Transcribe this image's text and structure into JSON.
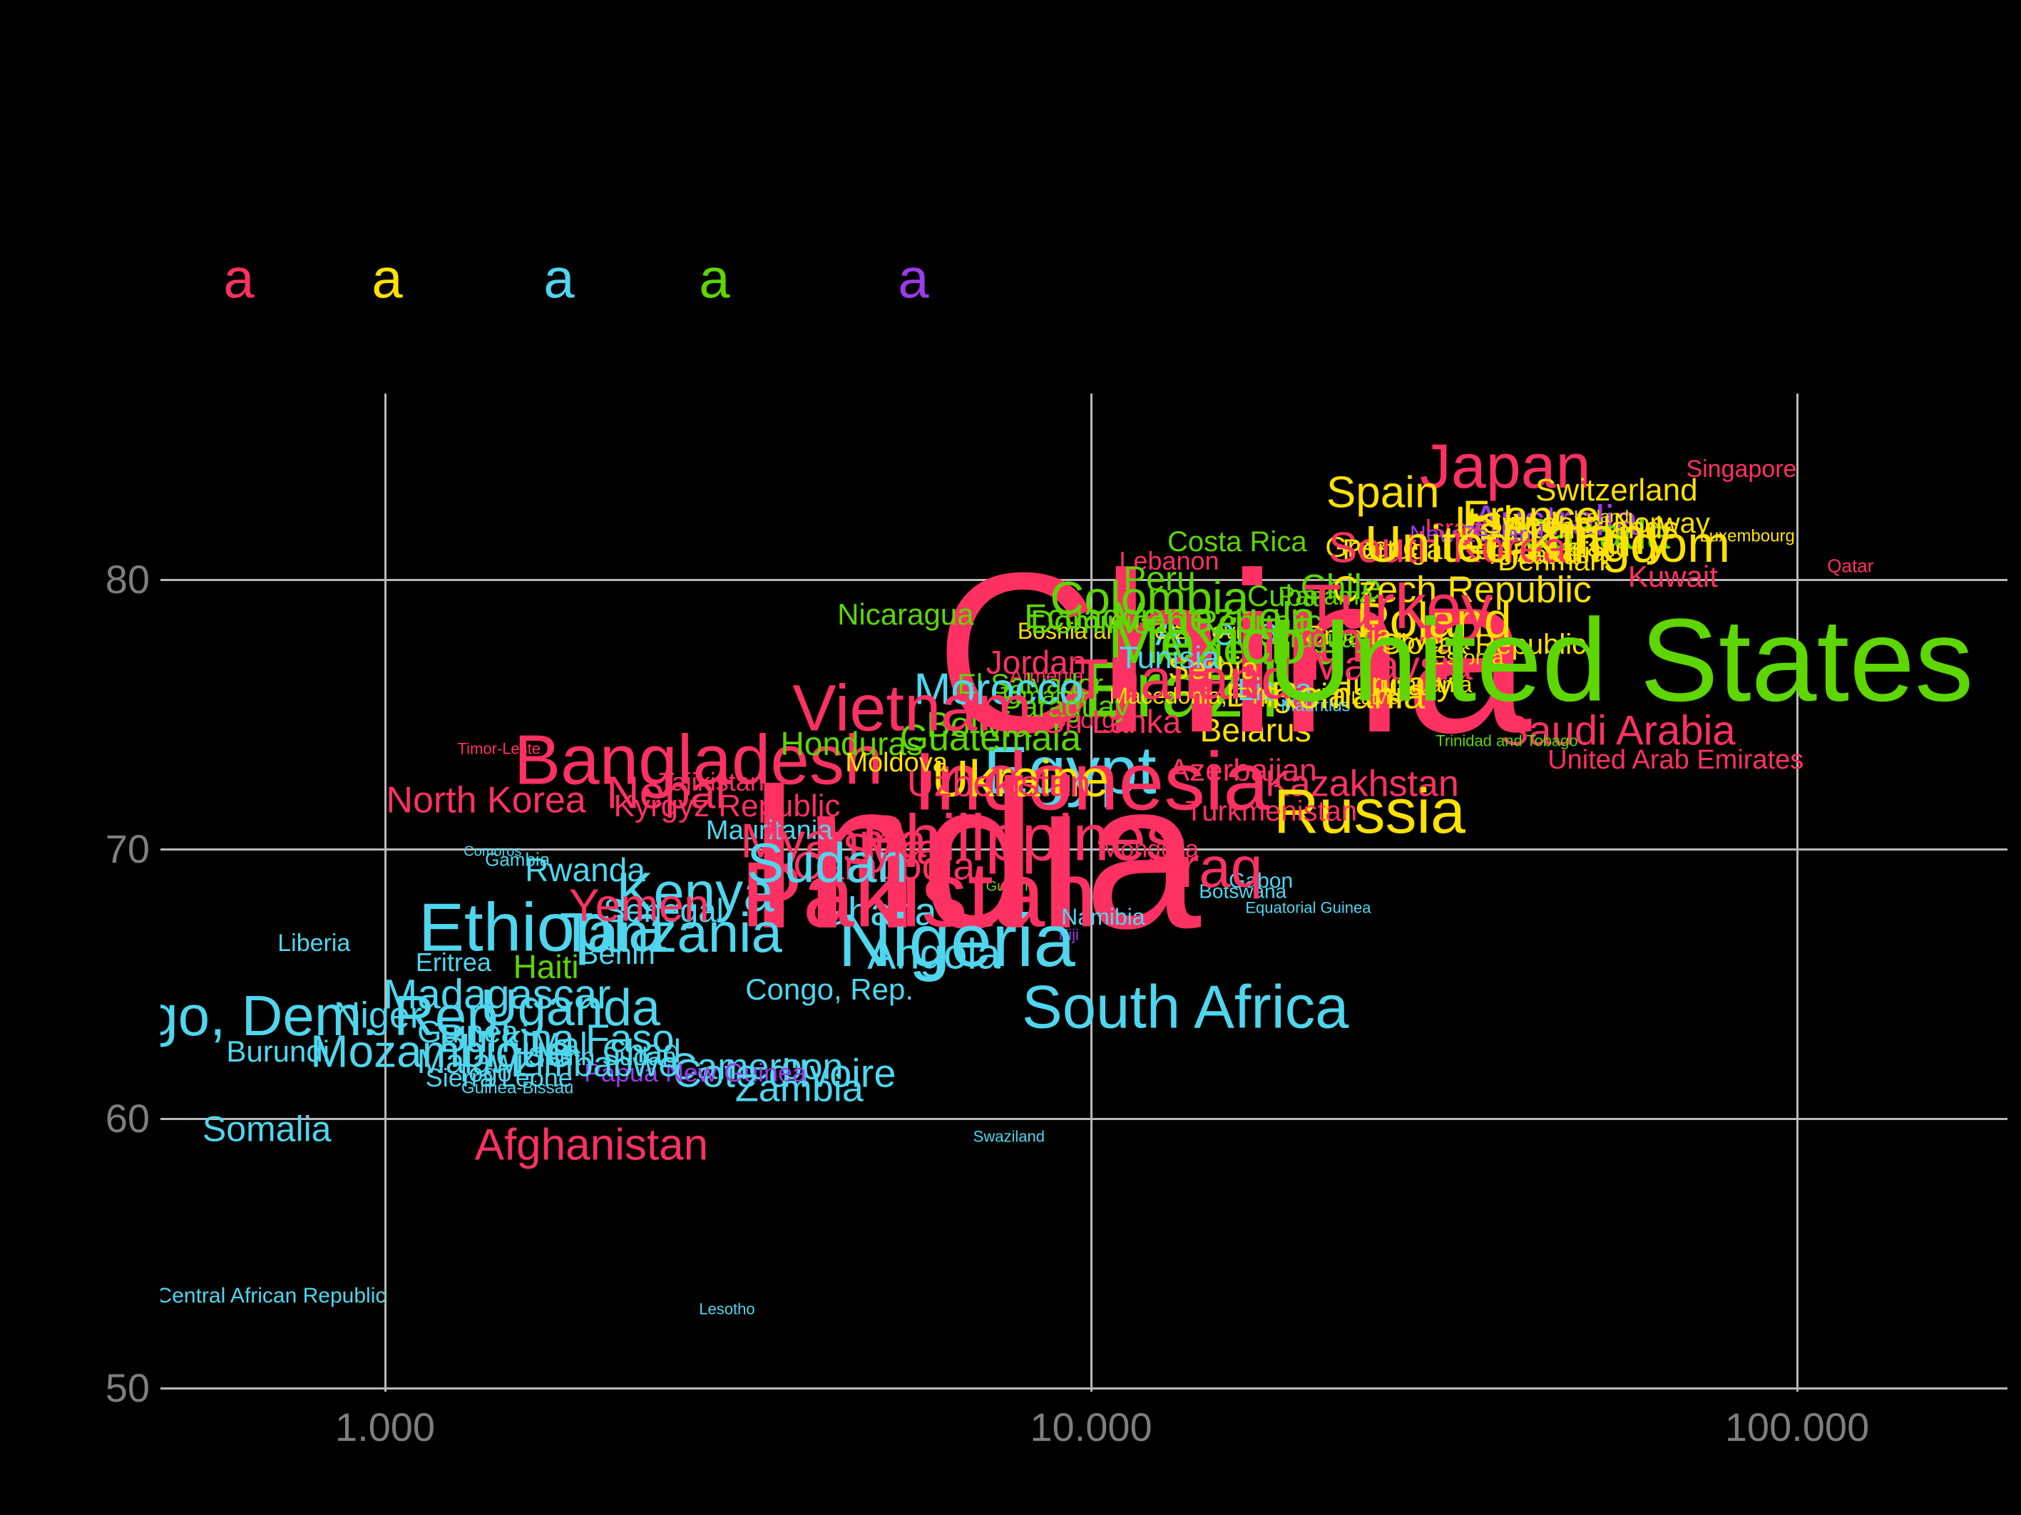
{
  "figure": {
    "background_color": "#000000",
    "gridline_color": "#b9b9b9",
    "axis_text_color": "#7e7e7e"
  },
  "legend": {
    "swatches": [
      {
        "glyph": "a",
        "color": "#ff3162"
      },
      {
        "glyph": "a",
        "color": "#ffe100"
      },
      {
        "glyph": "a",
        "color": "#4fd6ee"
      },
      {
        "glyph": "a",
        "color": "#5ed600"
      },
      {
        "glyph": "a",
        "color": "#9a3ce9"
      }
    ]
  },
  "continent_colors": {
    "asia": "#ff3162",
    "europe": "#ffe100",
    "africa": "#4fd6ee",
    "americas": "#5ed600",
    "oceania": "#9a3ce9"
  },
  "chart_data": {
    "type": "scatter",
    "mark": "text-label",
    "x_axis": {
      "scale": "log10",
      "ticks": [
        {
          "label": "1.000",
          "value": 1000
        },
        {
          "label": "10.000",
          "value": 10000
        },
        {
          "label": "100.000",
          "value": 100000
        }
      ]
    },
    "y_axis": {
      "scale": "linear",
      "ticks": [
        {
          "label": "80",
          "value": 80
        },
        {
          "label": "70",
          "value": 70
        },
        {
          "label": "60",
          "value": 60
        },
        {
          "label": "50",
          "value": 50
        }
      ]
    },
    "xlim": [
      700,
      200000
    ],
    "ylim": [
      46,
      87
    ],
    "grid": true,
    "points_columns": [
      "country",
      "gdp_per_capita",
      "life_expectancy",
      "label_size_px",
      "continent"
    ],
    "points": [
      [
        "China",
        15900,
        77.3,
        320,
        "asia"
      ],
      [
        "India",
        6800,
        69.8,
        295,
        "asia"
      ],
      [
        "Pakistan",
        5700,
        68.3,
        130,
        "asia"
      ],
      [
        "Indonesia",
        10000,
        72.5,
        115,
        "asia"
      ],
      [
        "Bangladesh",
        2780,
        73.3,
        98,
        "asia"
      ],
      [
        "Japan",
        38600,
        84.2,
        88,
        "asia"
      ],
      [
        "Philippines",
        7930,
        70.4,
        92,
        "asia"
      ],
      [
        "Vietnam",
        5580,
        75.2,
        92,
        "asia"
      ],
      [
        "Turkey",
        27200,
        79.0,
        88,
        "asia"
      ],
      [
        "Iran",
        20600,
        77.7,
        84,
        "asia"
      ],
      [
        "Thailand",
        13500,
        76.3,
        80,
        "asia"
      ],
      [
        "Myanmar",
        4430,
        70.3,
        68,
        "asia"
      ],
      [
        "South Korea",
        32000,
        81.2,
        60,
        "asia"
      ],
      [
        "North Korea",
        1390,
        71.8,
        52,
        "asia"
      ],
      [
        "Nepal",
        2500,
        72.1,
        64,
        "asia"
      ],
      [
        "Afghanistan",
        1960,
        59.0,
        62,
        "asia"
      ],
      [
        "Iraq",
        14900,
        69.3,
        80,
        "asia"
      ],
      [
        "Saudi Arabia",
        55800,
        74.4,
        58,
        "asia"
      ],
      [
        "Yemen",
        2290,
        67.9,
        64,
        "asia"
      ],
      [
        "Syria",
        5210,
        70.0,
        60,
        "asia"
      ],
      [
        "Cambodia",
        5090,
        69.4,
        56,
        "asia"
      ],
      [
        "Sri Lanka",
        10700,
        74.7,
        46,
        "asia"
      ],
      [
        "Kazakhstan",
        24200,
        72.4,
        52,
        "asia"
      ],
      [
        "Uzbekistan",
        7400,
        72.4,
        52,
        "asia"
      ],
      [
        "Azerbaijan",
        16400,
        72.9,
        44,
        "asia"
      ],
      [
        "Turkmenistan",
        18000,
        71.4,
        40,
        "asia"
      ],
      [
        "Mongolia",
        12100,
        70.0,
        34,
        "asia"
      ],
      [
        "Tajikistan",
        2900,
        72.5,
        36,
        "asia"
      ],
      [
        "Kyrgyz Republic",
        3050,
        71.6,
        44,
        "asia"
      ],
      [
        "Jordan",
        8360,
        76.9,
        46,
        "asia"
      ],
      [
        "Armenia",
        8650,
        76.4,
        28,
        "asia"
      ],
      [
        "Georgia",
        10000,
        74.8,
        34,
        "asia"
      ],
      [
        "Lebanon",
        12900,
        80.7,
        36,
        "asia"
      ],
      [
        "Israel",
        32900,
        81.9,
        36,
        "asia"
      ],
      [
        "Kuwait",
        66700,
        80.1,
        42,
        "asia"
      ],
      [
        "Qatar",
        119000,
        80.5,
        26,
        "asia"
      ],
      [
        "United Arab Emirates",
        67300,
        73.3,
        38,
        "asia"
      ],
      [
        "Singapore",
        83400,
        84.1,
        34,
        "asia"
      ],
      [
        "Malaysia",
        26600,
        76.8,
        58,
        "asia"
      ],
      [
        "Timor-Leste",
        1450,
        73.7,
        22,
        "asia"
      ],
      [
        "Russia",
        24800,
        71.4,
        88,
        "europe"
      ],
      [
        "Germany",
        47000,
        81.6,
        72,
        "europe"
      ],
      [
        "United Kingdom",
        44300,
        81.3,
        72,
        "europe"
      ],
      [
        "France",
        42000,
        82.3,
        62,
        "europe"
      ],
      [
        "Italy",
        37300,
        82.1,
        62,
        "europe"
      ],
      [
        "Spain",
        25900,
        83.2,
        62,
        "europe"
      ],
      [
        "Ukraine",
        7940,
        72.6,
        72,
        "europe"
      ],
      [
        "Poland",
        30600,
        78.5,
        70,
        "europe"
      ],
      [
        "Romania",
        23100,
        75.7,
        54,
        "europe"
      ],
      [
        "Netherlands",
        51500,
        81.9,
        44,
        "europe"
      ],
      [
        "Belgium",
        38900,
        81.1,
        40,
        "europe"
      ],
      [
        "Greece",
        25000,
        81.2,
        40,
        "europe"
      ],
      [
        "Portugal",
        27000,
        81.1,
        40,
        "europe"
      ],
      [
        "Czech Republic",
        33500,
        79.6,
        52,
        "europe"
      ],
      [
        "Hungary",
        26600,
        76.1,
        46,
        "europe"
      ],
      [
        "Sweden",
        42800,
        82.1,
        42,
        "europe"
      ],
      [
        "Austria",
        46400,
        81.0,
        40,
        "europe"
      ],
      [
        "Switzerland",
        55500,
        83.3,
        44,
        "europe"
      ],
      [
        "Bulgaria",
        18900,
        75.7,
        46,
        "europe"
      ],
      [
        "Serbia",
        14900,
        76.7,
        44,
        "europe"
      ],
      [
        "Denmark",
        45500,
        80.7,
        40,
        "europe"
      ],
      [
        "Finland",
        42300,
        80.9,
        38,
        "europe"
      ],
      [
        "Slovak Republic",
        36000,
        77.6,
        40,
        "europe"
      ],
      [
        "Norway",
        64300,
        82.1,
        40,
        "europe"
      ],
      [
        "Ireland",
        51000,
        81.2,
        36,
        "europe"
      ],
      [
        "Croatia",
        23100,
        77.9,
        38,
        "europe"
      ],
      [
        "Bosnia and Herzegovina",
        11800,
        78.1,
        32,
        "europe"
      ],
      [
        "Albania",
        11900,
        78.4,
        30,
        "europe"
      ],
      [
        "Lithuania",
        29800,
        76.1,
        32,
        "europe"
      ],
      [
        "Latvia",
        25300,
        75.6,
        26,
        "europe"
      ],
      [
        "Slovenia",
        29800,
        77.7,
        32,
        "europe"
      ],
      [
        "Estonia",
        34200,
        77.1,
        30,
        "europe"
      ],
      [
        "Macedonia, FYR",
        14000,
        75.7,
        32,
        "europe"
      ],
      [
        "Moldova",
        5300,
        73.2,
        38,
        "europe"
      ],
      [
        "Belarus",
        17100,
        74.4,
        46,
        "europe"
      ],
      [
        "Iceland",
        52800,
        82.3,
        24,
        "europe"
      ],
      [
        "Luxembourg",
        85000,
        81.6,
        24,
        "europe"
      ],
      [
        "Nigeria",
        6450,
        66.6,
        105,
        "africa"
      ],
      [
        "Ethiopia",
        1670,
        67.1,
        96,
        "africa"
      ],
      [
        "Egypt",
        9330,
        72.9,
        95,
        "africa"
      ],
      [
        "Congo, Dem. Rep.",
        705,
        63.8,
        80,
        "africa"
      ],
      [
        "South Africa",
        13600,
        64.1,
        85,
        "africa"
      ],
      [
        "Tanzania",
        2540,
        66.9,
        78,
        "africa"
      ],
      [
        "Kenya",
        2750,
        68.4,
        78,
        "africa"
      ],
      [
        "Sudan",
        4230,
        69.5,
        78,
        "africa"
      ],
      [
        "Uganda",
        1830,
        64.1,
        72,
        "africa"
      ],
      [
        "Algeria",
        15100,
        78.1,
        56,
        "africa"
      ],
      [
        "Morocco",
        7400,
        75.9,
        62,
        "africa"
      ],
      [
        "Mozambique",
        1200,
        62.5,
        64,
        "africa"
      ],
      [
        "Madagascar",
        1440,
        64.6,
        58,
        "africa"
      ],
      [
        "Cameroon",
        3360,
        61.9,
        52,
        "africa"
      ],
      [
        "Cote d'Ivoire",
        3680,
        61.7,
        56,
        "africa"
      ],
      [
        "Angola",
        5990,
        66.1,
        60,
        "africa"
      ],
      [
        "Ghana",
        4970,
        67.7,
        56,
        "africa"
      ],
      [
        "Niger",
        977,
        63.8,
        52,
        "africa"
      ],
      [
        "Burkina Faso",
        1750,
        63.0,
        56,
        "africa"
      ],
      [
        "Mali",
        1790,
        62.7,
        48,
        "africa"
      ],
      [
        "Malawi",
        1320,
        62.1,
        48,
        "africa"
      ],
      [
        "Zambia",
        3860,
        61.1,
        54,
        "africa"
      ],
      [
        "Senegal",
        2480,
        67.7,
        46,
        "africa"
      ],
      [
        "Zimbabwe",
        1990,
        62.0,
        50,
        "africa"
      ],
      [
        "Chad",
        2310,
        62.5,
        46,
        "africa"
      ],
      [
        "Guinea",
        1310,
        63.2,
        44,
        "africa"
      ],
      [
        "Rwanda",
        1920,
        69.2,
        46,
        "africa"
      ],
      [
        "Benin",
        2130,
        66.1,
        42,
        "africa"
      ],
      [
        "Burundi",
        705,
        62.5,
        42,
        "africa"
      ],
      [
        "Somalia",
        680,
        59.6,
        50,
        "africa"
      ],
      [
        "South Sudan",
        2030,
        62.3,
        36,
        "africa"
      ],
      [
        "Eritrea",
        1250,
        65.8,
        36,
        "africa"
      ],
      [
        "Liberia",
        793,
        66.5,
        34,
        "africa"
      ],
      [
        "Sierra Leone",
        1450,
        61.5,
        36,
        "africa"
      ],
      [
        "Guinea-Bissau",
        1540,
        61.1,
        24,
        "africa"
      ],
      [
        "Gambia",
        1540,
        69.6,
        26,
        "africa"
      ],
      [
        "Comoros",
        1420,
        69.9,
        20,
        "africa"
      ],
      [
        "Mauritania",
        3500,
        70.7,
        38,
        "africa"
      ],
      [
        "Togo",
        1380,
        61.7,
        36,
        "africa"
      ],
      [
        "Central African Republic",
        690,
        53.4,
        30,
        "africa"
      ],
      [
        "Lesotho",
        3050,
        52.9,
        22,
        "africa"
      ],
      [
        "Swaziland",
        7650,
        59.3,
        22,
        "africa"
      ],
      [
        "Namibia",
        10400,
        67.5,
        32,
        "africa"
      ],
      [
        "Botswana",
        16400,
        68.4,
        28,
        "africa"
      ],
      [
        "Gabon",
        17400,
        68.8,
        30,
        "africa"
      ],
      [
        "Equatorial Guinea",
        20300,
        67.8,
        22,
        "africa"
      ],
      [
        "Congo, Rep.",
        4260,
        64.8,
        42,
        "africa"
      ],
      [
        "Libya",
        18200,
        75.9,
        44,
        "africa"
      ],
      [
        "Tunisia",
        12900,
        77.1,
        44,
        "africa"
      ],
      [
        "Mauritius",
        20800,
        75.3,
        24,
        "africa"
      ],
      [
        "United States",
        56200,
        77.0,
        165,
        "americas"
      ],
      [
        "Brazil",
        13400,
        75.9,
        110,
        "americas"
      ],
      [
        "Mexico",
        14600,
        77.7,
        88,
        "americas"
      ],
      [
        "Colombia",
        12100,
        79.3,
        66,
        "americas"
      ],
      [
        "Argentina",
        16700,
        77.4,
        60,
        "americas"
      ],
      [
        "Canada",
        51800,
        81.7,
        60,
        "americas"
      ],
      [
        "Peru",
        12500,
        80.0,
        48,
        "americas"
      ],
      [
        "Venezuela",
        15000,
        78.6,
        60,
        "americas"
      ],
      [
        "Chile",
        22600,
        79.7,
        50,
        "americas"
      ],
      [
        "Ecuador",
        9900,
        78.6,
        48,
        "americas"
      ],
      [
        "Guatemala",
        7200,
        74.1,
        52,
        "americas"
      ],
      [
        "Cuba",
        18700,
        79.4,
        42,
        "americas"
      ],
      [
        "Bolivia",
        6940,
        74.6,
        50,
        "americas"
      ],
      [
        "Haiti",
        1690,
        65.6,
        46,
        "americas"
      ],
      [
        "Honduras",
        4580,
        73.9,
        46,
        "americas"
      ],
      [
        "Paraguay",
        9200,
        75.3,
        42,
        "americas"
      ],
      [
        "Nicaragua",
        5460,
        78.7,
        42,
        "americas"
      ],
      [
        "El Salvador",
        8200,
        76.1,
        40,
        "americas"
      ],
      [
        "Costa Rica",
        16100,
        81.4,
        40,
        "americas"
      ],
      [
        "Panama",
        21500,
        79.4,
        36,
        "americas"
      ],
      [
        "Uruguay",
        21100,
        77.8,
        36,
        "americas"
      ],
      [
        "Jamaica",
        8500,
        75.7,
        34,
        "americas"
      ],
      [
        "Dominican Republic",
        13200,
        78.4,
        46,
        "americas"
      ],
      [
        "Trinidad and Tobago",
        38800,
        74.0,
        22,
        "americas"
      ],
      [
        "Guyana",
        7700,
        68.6,
        20,
        "americas"
      ],
      [
        "Australia",
        45400,
        82.2,
        60,
        "oceania"
      ],
      [
        "New Zealand",
        35200,
        81.7,
        32,
        "oceania"
      ],
      [
        "Papua New Guinea",
        2750,
        61.7,
        36,
        "oceania"
      ],
      [
        "Fiji",
        9300,
        66.8,
        22,
        "oceania"
      ]
    ]
  }
}
